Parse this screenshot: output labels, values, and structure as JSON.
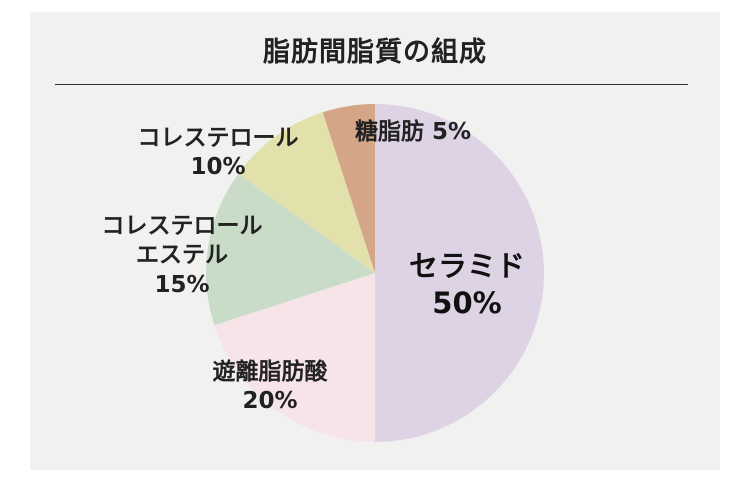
{
  "chart_data": {
    "type": "pie",
    "title": "脂肪間脂質の組成",
    "start": "12 o'clock",
    "direction": "clockwise",
    "slices": [
      {
        "label_lines": [
          "セラミド"
        ],
        "value": 50,
        "value_label": "50%",
        "color": "#ddd3e5"
      },
      {
        "label_lines": [
          "遊離脂肪酸"
        ],
        "value": 20,
        "value_label": "20%",
        "color": "#f6e4e8"
      },
      {
        "label_lines": [
          "コレステロール",
          "エステル"
        ],
        "value": 15,
        "value_label": "15%",
        "color": "#c9dcc8"
      },
      {
        "label_lines": [
          "コレステロール"
        ],
        "value": 10,
        "value_label": "10%",
        "color": "#e2e0ab"
      },
      {
        "label_lines": [
          "糖脂肪"
        ],
        "value": 5,
        "value_label": "5%",
        "color": "#d4a687"
      }
    ]
  }
}
